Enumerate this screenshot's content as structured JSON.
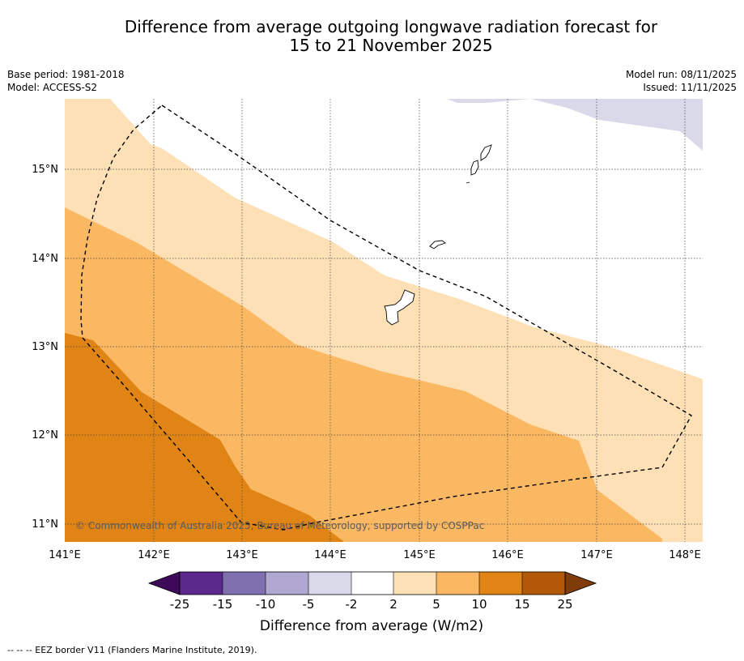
{
  "title": {
    "line1": "Difference from average outgoing longwave radiation forecast for",
    "line2": "15 to 21 November 2025"
  },
  "meta": {
    "base_period": "Base period: 1981-2018",
    "model": "Model: ACCESS-S2",
    "model_run": "Model run: 08/11/2025",
    "issued": "Issued: 11/11/2025"
  },
  "credit": "© Commonwealth of Australia 2025, Bureau of Meteorology, supported by COSPPac",
  "footer": "--  --  -- EEZ border V11 (Flanders Marine Institute, 2019).",
  "map": {
    "lon_ticks": [
      "141°E",
      "142°E",
      "143°E",
      "144°E",
      "145°E",
      "146°E",
      "147°E",
      "148°E"
    ],
    "lat_ticks": [
      "15°N",
      "14°N",
      "13°N",
      "12°N",
      "11°N"
    ],
    "lon_range": [
      141.0,
      148.2
    ],
    "lat_range": [
      10.8,
      15.8
    ],
    "features": {
      "island_northern": "Saipan / Tinian",
      "island_mid": "Rota",
      "island_south": "Guam",
      "boundary": "EEZ border"
    }
  },
  "colorbar": {
    "title": "Difference from average (W/m2)",
    "bins": [
      {
        "label": "-25",
        "color": "#5a2a8a"
      },
      {
        "label": "-15",
        "color": "#8170b0"
      },
      {
        "label": "-10",
        "color": "#b0a8d3"
      },
      {
        "label": "-5",
        "color": "#d9d9ea"
      },
      {
        "label": "-2",
        "color": "#ffffff"
      },
      {
        "label": "2",
        "color": "#fde0b6"
      },
      {
        "label": "5",
        "color": "#fbb862"
      },
      {
        "label": "10",
        "color": "#e08415"
      },
      {
        "label": "15",
        "color": "#b35806"
      },
      {
        "label": "25",
        "color": ""
      }
    ],
    "under_color": "#3d0a5a",
    "over_color": "#7f3b08"
  },
  "colors": {
    "band_2_5": "#fde0b6",
    "band_5_10": "#fbb862",
    "band_10_15": "#e08415",
    "band_neg": "#d9d9ea",
    "grid": "#444444"
  }
}
